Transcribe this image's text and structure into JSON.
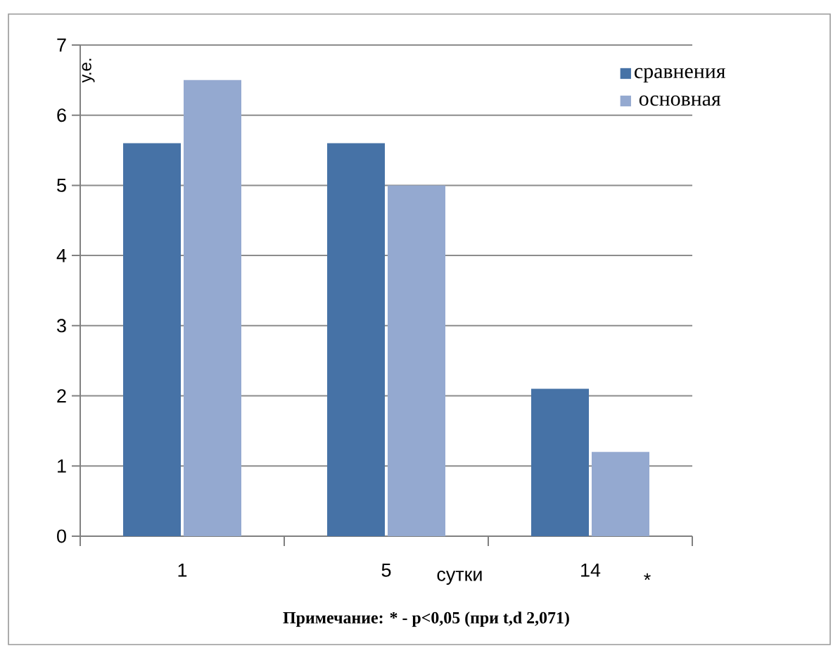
{
  "chart_data": {
    "type": "bar",
    "categories": [
      "1",
      "5",
      "14"
    ],
    "series": [
      {
        "name": "сравнения",
        "color": "#4672a6",
        "values": [
          5.6,
          5.6,
          2.1
        ]
      },
      {
        "name": "основная",
        "color": "#94a9d0",
        "values": [
          6.5,
          5.0,
          1.2
        ]
      }
    ],
    "ylabel": "у.е.",
    "xlabel": "сутки",
    "ylim": [
      0,
      7
    ],
    "yticks": [
      0,
      1,
      2,
      3,
      4,
      5,
      6,
      7
    ],
    "grid": "y",
    "legend": "top right",
    "annotations": [
      "*",
      "Примечание: * -  p<0,05 (при t,d 2,071)"
    ]
  }
}
